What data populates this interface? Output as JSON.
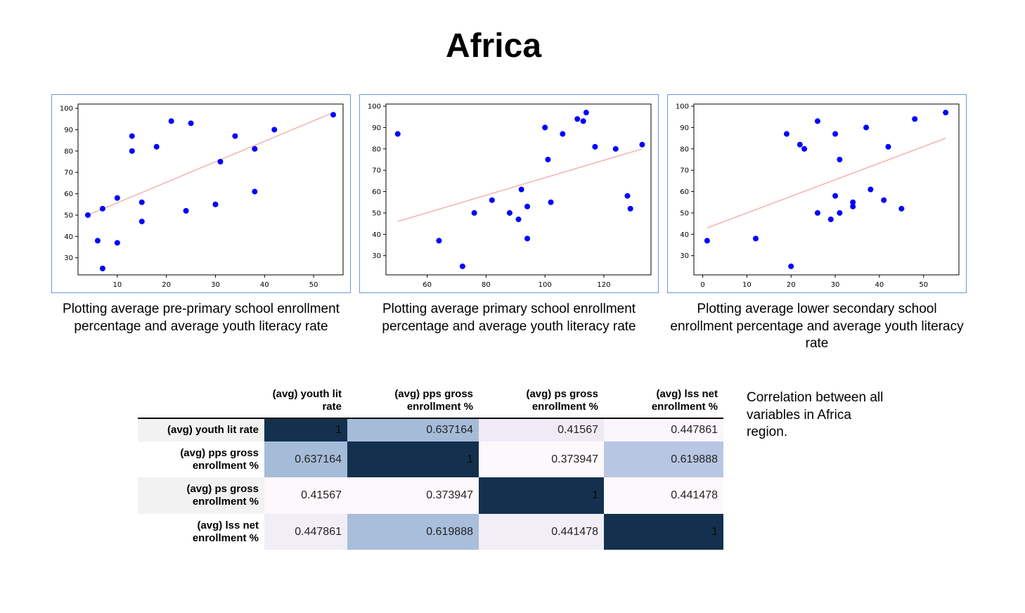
{
  "page": {
    "title": "Africa",
    "note": "Correlation between all variables in Africa region."
  },
  "chart_data": [
    {
      "type": "scatter",
      "caption": "Plotting average pre-primary school enrollment percentage and average youth literacy rate",
      "xlim": [
        2,
        56
      ],
      "ylim": [
        22,
        102
      ],
      "xticks": [
        10,
        20,
        30,
        40,
        50
      ],
      "yticks": [
        30,
        40,
        50,
        60,
        70,
        80,
        90,
        100
      ],
      "grid": false,
      "point_color": "#0000ff",
      "line_color": "#f4b6b6",
      "points": [
        [
          4,
          50
        ],
        [
          6,
          38
        ],
        [
          7,
          53
        ],
        [
          7,
          25
        ],
        [
          10,
          58
        ],
        [
          10,
          37
        ],
        [
          13,
          87
        ],
        [
          13,
          80
        ],
        [
          15,
          56
        ],
        [
          15,
          47
        ],
        [
          18,
          82
        ],
        [
          21,
          94
        ],
        [
          24,
          52
        ],
        [
          25,
          93
        ],
        [
          30,
          55
        ],
        [
          31,
          75
        ],
        [
          34,
          87
        ],
        [
          38,
          81
        ],
        [
          38,
          61
        ],
        [
          42,
          90
        ],
        [
          54,
          97
        ]
      ],
      "fit_line": [
        [
          4,
          50
        ],
        [
          54,
          98
        ]
      ]
    },
    {
      "type": "scatter",
      "caption": "Plotting average primary school enrollment percentage and average youth literacy rate",
      "xlim": [
        46,
        136
      ],
      "ylim": [
        21,
        101
      ],
      "xticks": [
        60,
        80,
        100,
        120
      ],
      "yticks": [
        30,
        40,
        50,
        60,
        70,
        80,
        90,
        100
      ],
      "grid": false,
      "point_color": "#0000ff",
      "line_color": "#f4b6b6",
      "points": [
        [
          50,
          87
        ],
        [
          64,
          37
        ],
        [
          72,
          25
        ],
        [
          76,
          50
        ],
        [
          82,
          56
        ],
        [
          88,
          50
        ],
        [
          91,
          47
        ],
        [
          92,
          61
        ],
        [
          94,
          53
        ],
        [
          94,
          38
        ],
        [
          100,
          90
        ],
        [
          101,
          75
        ],
        [
          102,
          55
        ],
        [
          106,
          87
        ],
        [
          111,
          94
        ],
        [
          113,
          93
        ],
        [
          114,
          97
        ],
        [
          117,
          81
        ],
        [
          124,
          80
        ],
        [
          128,
          58
        ],
        [
          129,
          52
        ],
        [
          133,
          82
        ]
      ],
      "fit_line": [
        [
          50,
          46
        ],
        [
          133,
          80
        ]
      ]
    },
    {
      "type": "scatter",
      "caption": "Plotting average lower secondary school enrollment percentage and average youth literacy rate",
      "xlim": [
        -2,
        58
      ],
      "ylim": [
        21,
        101
      ],
      "xticks": [
        0,
        10,
        20,
        30,
        40,
        50
      ],
      "yticks": [
        30,
        40,
        50,
        60,
        70,
        80,
        90,
        100
      ],
      "grid": false,
      "point_color": "#0000ff",
      "line_color": "#f4b6b6",
      "points": [
        [
          1,
          37
        ],
        [
          12,
          38
        ],
        [
          19,
          87
        ],
        [
          20,
          25
        ],
        [
          22,
          82
        ],
        [
          23,
          80
        ],
        [
          26,
          93
        ],
        [
          26,
          50
        ],
        [
          29,
          47
        ],
        [
          30,
          87
        ],
        [
          30,
          58
        ],
        [
          31,
          75
        ],
        [
          31,
          50
        ],
        [
          34,
          55
        ],
        [
          34,
          53
        ],
        [
          37,
          90
        ],
        [
          38,
          61
        ],
        [
          41,
          56
        ],
        [
          42,
          81
        ],
        [
          45,
          52
        ],
        [
          48,
          94
        ],
        [
          55,
          97
        ]
      ],
      "fit_line": [
        [
          1,
          43
        ],
        [
          55,
          85
        ]
      ]
    }
  ],
  "table": {
    "columns": [
      "(avg) youth lit rate",
      "(avg) pps gross enrollment %",
      "(avg) ps gross enrollment %",
      "(avg) lss net enrollment %"
    ],
    "rows": [
      {
        "label": "(avg) youth lit rate",
        "values": [
          "1",
          "0.637164",
          "0.41567",
          "0.447861"
        ],
        "shades": [
          "#13314f",
          "#a5bcd9",
          "#efeaf3",
          "#fbf6fb"
        ]
      },
      {
        "label": "(avg) pps gross enrollment %",
        "values": [
          "0.637164",
          "1",
          "0.373947",
          "0.619888"
        ],
        "shades": [
          "#a5bcd9",
          "#13314f",
          "#fdf8fc",
          "#b7c6e2"
        ]
      },
      {
        "label": "(avg) ps gross enrollment %",
        "values": [
          "0.41567",
          "0.373947",
          "1",
          "0.441478"
        ],
        "shades": [
          "#fdf8fc",
          "#fdf8fc",
          "#13314f",
          "#fdf8fc"
        ]
      },
      {
        "label": "(avg) lss net enrollment %",
        "values": [
          "0.447861",
          "0.619888",
          "0.441478",
          "1"
        ],
        "shades": [
          "#f2eef6",
          "#a8bedb",
          "#f2eef6",
          "#13314f"
        ]
      }
    ]
  }
}
